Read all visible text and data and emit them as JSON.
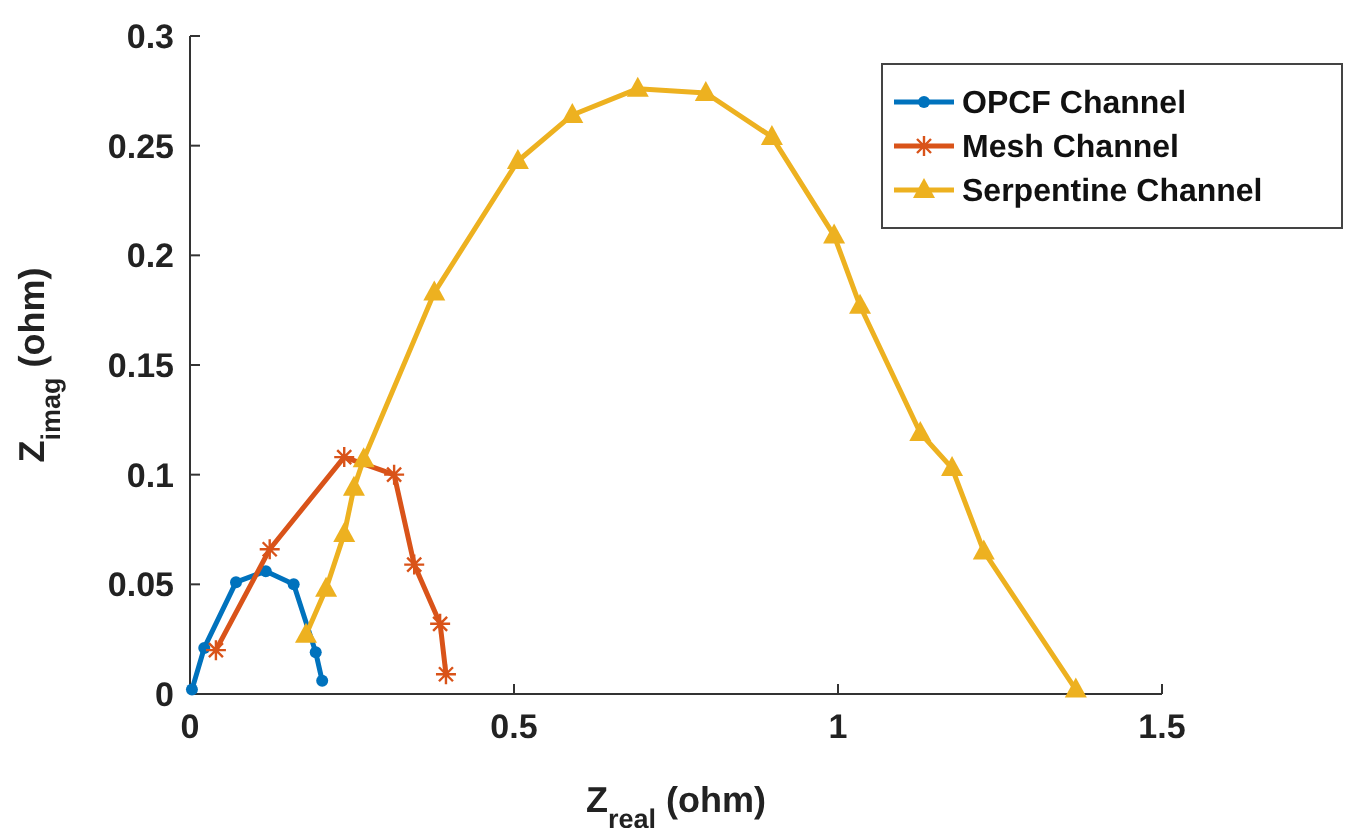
{
  "chart_data": {
    "type": "line",
    "xlabel": "Z$_{real}$ (ohm)",
    "ylabel": "Z$_{imag}$ (ohm)",
    "xlim": [
      0,
      1.5
    ],
    "xticks": [
      0,
      0.5,
      1,
      1.5
    ],
    "ylim": [
      0,
      0.3
    ],
    "yticks": [
      0,
      0.05,
      0.1,
      0.15,
      0.2,
      0.25,
      0.3
    ],
    "grid": false,
    "legend": "top right",
    "line_style": "solid",
    "series": [
      {
        "name": "OPCF Channel",
        "color": "#0072bd",
        "marker": "circle",
        "x": [
          0.003,
          0.022,
          0.071,
          0.117,
          0.16,
          0.194,
          0.204
        ],
        "values": [
          0.002,
          0.021,
          0.051,
          0.056,
          0.05,
          0.019,
          0.006
        ]
      },
      {
        "name": "Mesh Channel",
        "color": "#d95319",
        "marker": "cross",
        "x": [
          0.04,
          0.123,
          0.238,
          0.315,
          0.346,
          0.386,
          0.395
        ],
        "values": [
          0.02,
          0.066,
          0.108,
          0.1,
          0.059,
          0.032,
          0.009
        ]
      },
      {
        "name": "Serpentine Channel",
        "color": "#edb120",
        "marker": "triangle",
        "x": [
          0.179,
          0.21,
          0.238,
          0.253,
          0.268,
          0.377,
          0.506,
          0.59,
          0.691,
          0.796,
          0.898,
          0.994,
          1.034,
          1.127,
          1.176,
          1.225,
          1.367
        ],
        "values": [
          0.027,
          0.048,
          0.073,
          0.094,
          0.107,
          0.183,
          0.243,
          0.264,
          0.276,
          0.274,
          0.254,
          0.209,
          0.177,
          0.119,
          0.103,
          0.065,
          0.002
        ]
      }
    ]
  }
}
